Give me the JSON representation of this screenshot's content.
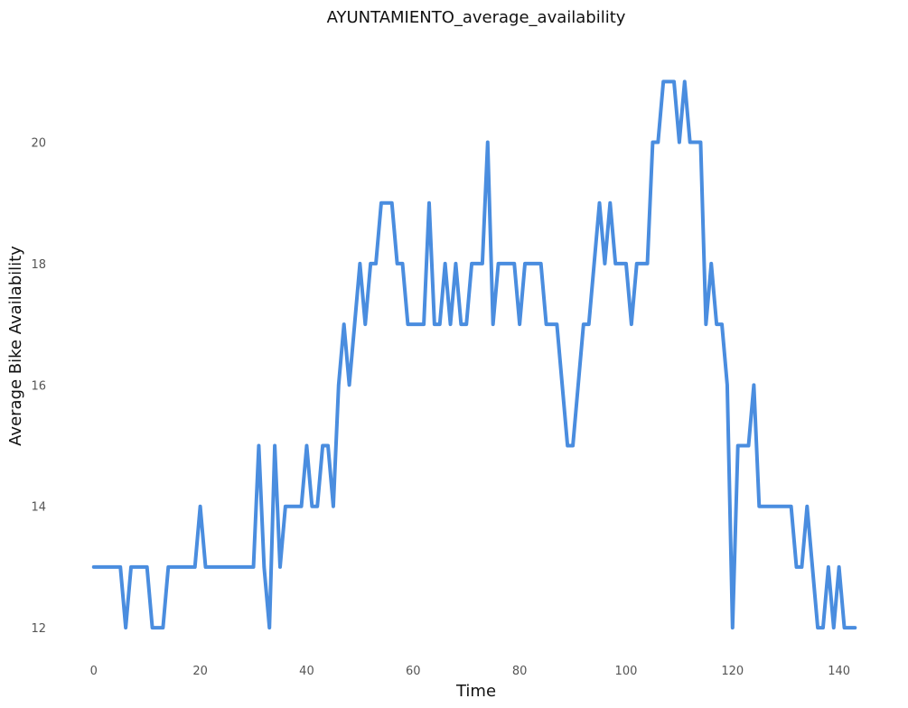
{
  "chart_data": {
    "type": "line",
    "title": "AYUNTAMIENTO_average_availability",
    "xlabel": "Time",
    "ylabel": "Average Bike Availability",
    "xlim": [
      -2,
      146
    ],
    "ylim": [
      11.6,
      21.6
    ],
    "xticks": [
      0,
      20,
      40,
      60,
      80,
      100,
      120,
      140
    ],
    "yticks": [
      12,
      14,
      16,
      18,
      20
    ],
    "grid": false,
    "color": "#4A8DDF",
    "x": [
      0,
      1,
      2,
      3,
      4,
      5,
      6,
      7,
      8,
      9,
      10,
      11,
      12,
      13,
      14,
      15,
      16,
      17,
      18,
      19,
      20,
      21,
      22,
      23,
      24,
      25,
      26,
      27,
      28,
      29,
      30,
      31,
      32,
      33,
      34,
      35,
      36,
      37,
      38,
      39,
      40,
      41,
      42,
      43,
      44,
      45,
      46,
      47,
      48,
      49,
      50,
      51,
      52,
      53,
      54,
      55,
      56,
      57,
      58,
      59,
      60,
      61,
      62,
      63,
      64,
      65,
      66,
      67,
      68,
      69,
      70,
      71,
      72,
      73,
      74,
      75,
      76,
      77,
      78,
      79,
      80,
      81,
      82,
      83,
      84,
      85,
      86,
      87,
      88,
      89,
      90,
      91,
      92,
      93,
      94,
      95,
      96,
      97,
      98,
      99,
      100,
      101,
      102,
      103,
      104,
      105,
      106,
      107,
      108,
      109,
      110,
      111,
      112,
      113,
      114,
      115,
      116,
      117,
      118,
      119,
      120,
      121,
      122,
      123,
      124,
      125,
      126,
      127,
      128,
      129,
      130,
      131,
      132,
      133,
      134,
      135,
      136,
      137,
      138,
      139,
      140,
      141,
      142,
      143
    ],
    "values": [
      13,
      13,
      13,
      13,
      13,
      13,
      12,
      13,
      13,
      13,
      13,
      12,
      12,
      12,
      13,
      13,
      13,
      13,
      13,
      13,
      14,
      13,
      13,
      13,
      13,
      13,
      13,
      13,
      13,
      13,
      13,
      15,
      13,
      12,
      15,
      13,
      14,
      14,
      14,
      14,
      15,
      14,
      14,
      15,
      15,
      14,
      16,
      17,
      16,
      17,
      18,
      17,
      18,
      18,
      19,
      19,
      19,
      18,
      18,
      17,
      17,
      17,
      17,
      19,
      17,
      17,
      18,
      17,
      18,
      17,
      17,
      18,
      18,
      18,
      20,
      17,
      18,
      18,
      18,
      18,
      17,
      18,
      18,
      18,
      18,
      17,
      17,
      17,
      16,
      15,
      15,
      16,
      17,
      17,
      18,
      19,
      18,
      19,
      18,
      18,
      18,
      17,
      18,
      18,
      18,
      20,
      20,
      21,
      21,
      21,
      20,
      21,
      20,
      20,
      20,
      17,
      18,
      17,
      17,
      16,
      12,
      15,
      15,
      15,
      16,
      14,
      14,
      14,
      14,
      14,
      14,
      14,
      13,
      13,
      14,
      13,
      12,
      12,
      13,
      12,
      13,
      12,
      12,
      12
    ]
  }
}
